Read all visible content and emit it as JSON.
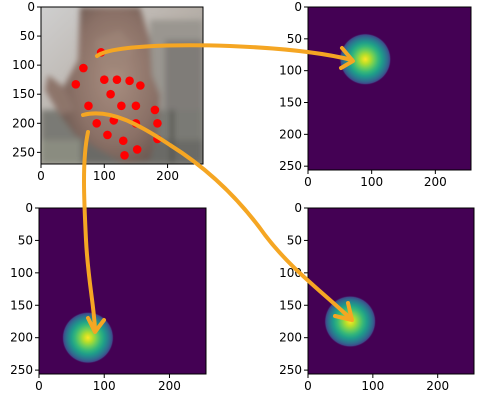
{
  "figure": {
    "arrow_color": "#f5a623",
    "keypoint_color": "#ff0000",
    "colormap": "viridis",
    "heatmap_background": "#440154",
    "heatmap_peak": "#fde725"
  },
  "panels": [
    {
      "id": "photo",
      "content": "hand-photo-with-keypoints",
      "xlim": [
        0,
        256
      ],
      "ylim": [
        270,
        0
      ],
      "xticks": [
        "0",
        "100",
        "200"
      ],
      "yticks": [
        "0",
        "50",
        "100",
        "150",
        "200",
        "250"
      ],
      "xtick_values": [
        0,
        100,
        200
      ],
      "ytick_values": [
        0,
        50,
        100,
        150,
        200,
        250
      ]
    },
    {
      "id": "heatmap-1",
      "content": "gaussian-heatmap",
      "peak": [
        90,
        82
      ],
      "xlim": [
        0,
        256
      ],
      "ylim": [
        256,
        0
      ],
      "xticks": [
        "0",
        "100",
        "200"
      ],
      "yticks": [
        "0",
        "50",
        "100",
        "150",
        "200",
        "250"
      ],
      "xtick_values": [
        0,
        100,
        200
      ],
      "ytick_values": [
        0,
        50,
        100,
        150,
        200,
        250
      ]
    },
    {
      "id": "heatmap-2",
      "content": "gaussian-heatmap",
      "peak": [
        75,
        200
      ],
      "xlim": [
        0,
        256
      ],
      "ylim": [
        256,
        0
      ],
      "xticks": [
        "0",
        "100",
        "200"
      ],
      "yticks": [
        "0",
        "50",
        "100",
        "150",
        "200",
        "250"
      ],
      "xtick_values": [
        0,
        100,
        200
      ],
      "ytick_values": [
        0,
        50,
        100,
        150,
        200,
        250
      ]
    },
    {
      "id": "heatmap-3",
      "content": "gaussian-heatmap",
      "peak": [
        65,
        175
      ],
      "xlim": [
        0,
        256
      ],
      "ylim": [
        256,
        0
      ],
      "xticks": [
        "0",
        "100",
        "200"
      ],
      "yticks": [
        "0",
        "50",
        "100",
        "150",
        "200",
        "250"
      ],
      "xtick_values": [
        0,
        100,
        200
      ],
      "ytick_values": [
        0,
        50,
        100,
        150,
        200,
        250
      ]
    }
  ],
  "keypoints": [
    [
      95,
      78
    ],
    [
      67,
      105
    ],
    [
      55,
      133
    ],
    [
      100,
      125
    ],
    [
      120,
      125
    ],
    [
      140,
      127
    ],
    [
      157,
      135
    ],
    [
      75,
      170
    ],
    [
      110,
      150
    ],
    [
      127,
      170
    ],
    [
      150,
      170
    ],
    [
      180,
      177
    ],
    [
      88,
      200
    ],
    [
      115,
      195
    ],
    [
      150,
      200
    ],
    [
      184,
      200
    ],
    [
      105,
      220
    ],
    [
      130,
      230
    ],
    [
      184,
      227
    ],
    [
      152,
      245
    ],
    [
      132,
      255
    ]
  ],
  "arrow_links": [
    {
      "from_panel": "photo",
      "from_point": 0,
      "to_panel": "heatmap-1"
    },
    {
      "from_panel": "photo",
      "from_point": 12,
      "to_panel": "heatmap-2"
    },
    {
      "from_panel": "photo",
      "from_point": 7,
      "to_panel": "heatmap-3"
    }
  ]
}
